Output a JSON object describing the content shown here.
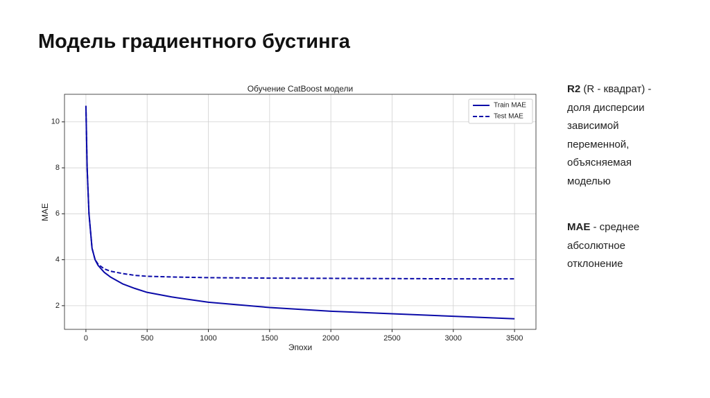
{
  "slide": {
    "title": "Модель градиентного бустинга",
    "notes": [
      {
        "term": "R2",
        "text": "(R - квадрат) - доля дисперсии зависимой переменной, объясняемая моделью"
      },
      {
        "term": "MAE",
        "text": "- среднее абсолютное отклонение"
      }
    ]
  },
  "chart_data": {
    "type": "line",
    "title": "Обучение CatBoost модели",
    "x_label": "Эпохи",
    "y_label": "MAE",
    "x": [
      0,
      10,
      25,
      50,
      75,
      100,
      150,
      200,
      300,
      400,
      500,
      700,
      1000,
      1500,
      2000,
      2500,
      3000,
      3500
    ],
    "series": [
      {
        "name": "Train MAE",
        "color": "#0a0aa8",
        "line_style": "solid",
        "values": [
          10.7,
          8,
          6,
          4.5,
          4.0,
          3.75,
          3.45,
          3.25,
          2.95,
          2.75,
          2.58,
          2.38,
          2.15,
          1.92,
          1.76,
          1.65,
          1.54,
          1.43
        ]
      },
      {
        "name": "Test MAE",
        "color": "#0a0aa8",
        "line_style": "dashed",
        "values": [
          10.7,
          8,
          6,
          4.5,
          4.0,
          3.8,
          3.6,
          3.5,
          3.4,
          3.32,
          3.28,
          3.25,
          3.22,
          3.2,
          3.19,
          3.18,
          3.17,
          3.17
        ]
      }
    ],
    "xlim": [
      -175,
      3675
    ],
    "ylim": [
      0.97,
      11.2
    ],
    "xticks": [
      0,
      500,
      1000,
      1500,
      2000,
      2500,
      3000,
      3500
    ],
    "yticks": [
      2,
      4,
      6,
      8,
      10
    ],
    "grid": true,
    "legend": "upper right"
  }
}
